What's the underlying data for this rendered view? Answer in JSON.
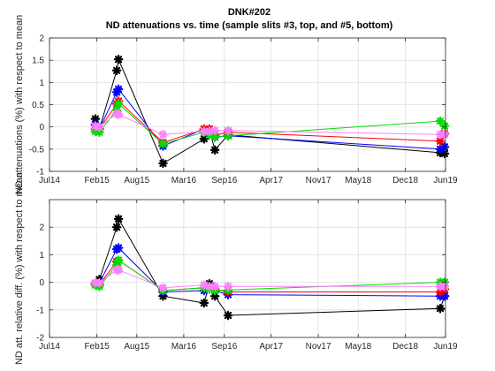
{
  "figure": {
    "title_line1": "DNK#202",
    "title_line2": "ND attenuations vs. time (sample slits #3, top, and #5, bottom)"
  },
  "chart_data": [
    {
      "type": "line",
      "panel": "top",
      "ylabel": "ND attenuations (%) with respect to mean",
      "xlim": [
        "2014-07-01",
        "2019-06-01"
      ],
      "ylim": [
        -1,
        2
      ],
      "yticks": [
        -1,
        -0.5,
        0,
        0.5,
        1,
        1.5,
        2
      ],
      "xtick_dates": [
        "2014-07-01",
        "2015-02-01",
        "2015-08-01",
        "2016-03-01",
        "2016-09-01",
        "2017-04-01",
        "2017-11-01",
        "2018-05-01",
        "2018-12-01",
        "2019-06-01"
      ],
      "xtick_labels": [
        "Jul14",
        "Feb15",
        "Aug15",
        "Mar16",
        "Sep16",
        "Apr17",
        "Nov17",
        "May18",
        "Dec18",
        "Jun19"
      ],
      "grid": true,
      "series": [
        {
          "color": "#000000",
          "x": [
            "2015-01-25",
            "2015-02-12",
            "2015-05-02",
            "2015-05-10",
            "2015-11-28",
            "2016-06-01",
            "2016-06-25",
            "2016-07-20",
            "2016-09-18",
            "2019-05-08",
            "2019-05-28"
          ],
          "y": [
            0.18,
            -0.05,
            1.27,
            1.52,
            -0.82,
            -0.27,
            -0.05,
            -0.52,
            -0.18,
            -0.58,
            -0.6
          ]
        },
        {
          "color": "#0000ff",
          "x": [
            "2015-01-25",
            "2015-02-12",
            "2015-05-02",
            "2015-05-10",
            "2015-11-28",
            "2016-06-01",
            "2016-06-25",
            "2016-07-20",
            "2016-09-18",
            "2019-05-08",
            "2019-05-28"
          ],
          "y": [
            0.05,
            -0.05,
            0.78,
            0.85,
            -0.43,
            -0.05,
            -0.05,
            -0.23,
            -0.2,
            -0.5,
            -0.45
          ]
        },
        {
          "color": "#ff0000",
          "x": [
            "2015-01-25",
            "2015-02-12",
            "2015-05-02",
            "2015-05-10",
            "2015-11-28",
            "2016-06-01",
            "2016-06-25",
            "2016-07-20",
            "2016-09-18",
            "2019-05-08",
            "2019-05-28"
          ],
          "y": [
            -0.05,
            -0.05,
            0.52,
            0.58,
            -0.35,
            -0.05,
            -0.05,
            -0.18,
            -0.12,
            -0.32,
            -0.15
          ]
        },
        {
          "color": "#00dd00",
          "x": [
            "2015-01-25",
            "2015-02-12",
            "2015-05-02",
            "2015-05-10",
            "2015-11-28",
            "2016-06-01",
            "2016-06-25",
            "2016-07-20",
            "2016-09-18",
            "2019-05-08",
            "2019-05-28"
          ],
          "y": [
            -0.1,
            -0.12,
            0.38,
            0.52,
            -0.38,
            -0.12,
            -0.18,
            -0.22,
            -0.2,
            0.13,
            0.02
          ]
        },
        {
          "color": "#ff80ff",
          "x": [
            "2015-01-25",
            "2015-02-12",
            "2015-05-02",
            "2015-05-10",
            "2015-11-28",
            "2016-06-01",
            "2016-06-25",
            "2016-07-20",
            "2016-09-18",
            "2019-05-08",
            "2019-05-28"
          ],
          "y": [
            0.02,
            0.0,
            0.3,
            0.28,
            -0.17,
            -0.1,
            -0.1,
            -0.08,
            -0.08,
            -0.17,
            -0.17
          ]
        }
      ]
    },
    {
      "type": "line",
      "panel": "bottom",
      "ylabel": "ND att. relative diff. (%) with respect to mean",
      "xlim": [
        "2014-07-01",
        "2019-06-01"
      ],
      "ylim": [
        -2,
        3
      ],
      "yticks": [
        -2,
        -1,
        0,
        1,
        2
      ],
      "xtick_dates": [
        "2014-07-01",
        "2015-02-01",
        "2015-08-01",
        "2016-03-01",
        "2016-09-01",
        "2017-04-01",
        "2017-11-01",
        "2018-05-01",
        "2018-12-01",
        "2019-06-01"
      ],
      "xtick_labels": [
        "Jul14",
        "Feb15",
        "Aug15",
        "Mar16",
        "Sep16",
        "Apr17",
        "Nov17",
        "May18",
        "Dec18",
        "Jun19"
      ],
      "grid": true,
      "series": [
        {
          "color": "#000000",
          "x": [
            "2015-01-25",
            "2015-02-12",
            "2015-05-02",
            "2015-05-10",
            "2015-11-28",
            "2016-06-01",
            "2016-06-25",
            "2016-07-20",
            "2016-09-18",
            "2019-05-08",
            "2019-05-28"
          ],
          "y": [
            -0.05,
            0.1,
            2.0,
            2.3,
            -0.5,
            -0.75,
            -0.05,
            -0.5,
            -1.2,
            -0.95,
            -0.5
          ]
        },
        {
          "color": "#0000ff",
          "x": [
            "2015-01-25",
            "2015-02-12",
            "2015-05-02",
            "2015-05-10",
            "2015-11-28",
            "2016-06-01",
            "2016-06-25",
            "2016-07-20",
            "2016-09-18",
            "2019-05-08",
            "2019-05-28"
          ],
          "y": [
            -0.05,
            -0.02,
            1.2,
            1.25,
            -0.35,
            -0.3,
            -0.15,
            -0.3,
            -0.45,
            -0.5,
            -0.5
          ]
        },
        {
          "color": "#ff0000",
          "x": [
            "2015-01-25",
            "2015-02-12",
            "2015-05-02",
            "2015-05-10",
            "2015-11-28",
            "2016-06-01",
            "2016-06-25",
            "2016-07-20",
            "2016-09-18",
            "2019-05-08",
            "2019-05-28"
          ],
          "y": [
            -0.05,
            -0.08,
            0.75,
            0.8,
            -0.3,
            -0.2,
            -0.15,
            -0.25,
            -0.35,
            -0.35,
            -0.25
          ]
        },
        {
          "color": "#00dd00",
          "x": [
            "2015-01-25",
            "2015-02-12",
            "2015-05-02",
            "2015-05-10",
            "2015-11-28",
            "2016-06-01",
            "2016-06-25",
            "2016-07-20",
            "2016-09-18",
            "2019-05-08",
            "2019-05-28"
          ],
          "y": [
            -0.1,
            -0.15,
            0.62,
            0.8,
            -0.3,
            -0.2,
            -0.25,
            -0.3,
            -0.28,
            0.0,
            0.0
          ]
        },
        {
          "color": "#ff80ff",
          "x": [
            "2015-01-25",
            "2015-02-12",
            "2015-05-02",
            "2015-05-10",
            "2015-11-28",
            "2016-06-01",
            "2016-06-25",
            "2016-07-20",
            "2016-09-18",
            "2019-05-08",
            "2019-05-28"
          ],
          "y": [
            -0.02,
            -0.02,
            0.45,
            0.45,
            -0.2,
            -0.1,
            -0.15,
            -0.15,
            -0.15,
            -0.15,
            -0.15
          ]
        }
      ]
    }
  ]
}
